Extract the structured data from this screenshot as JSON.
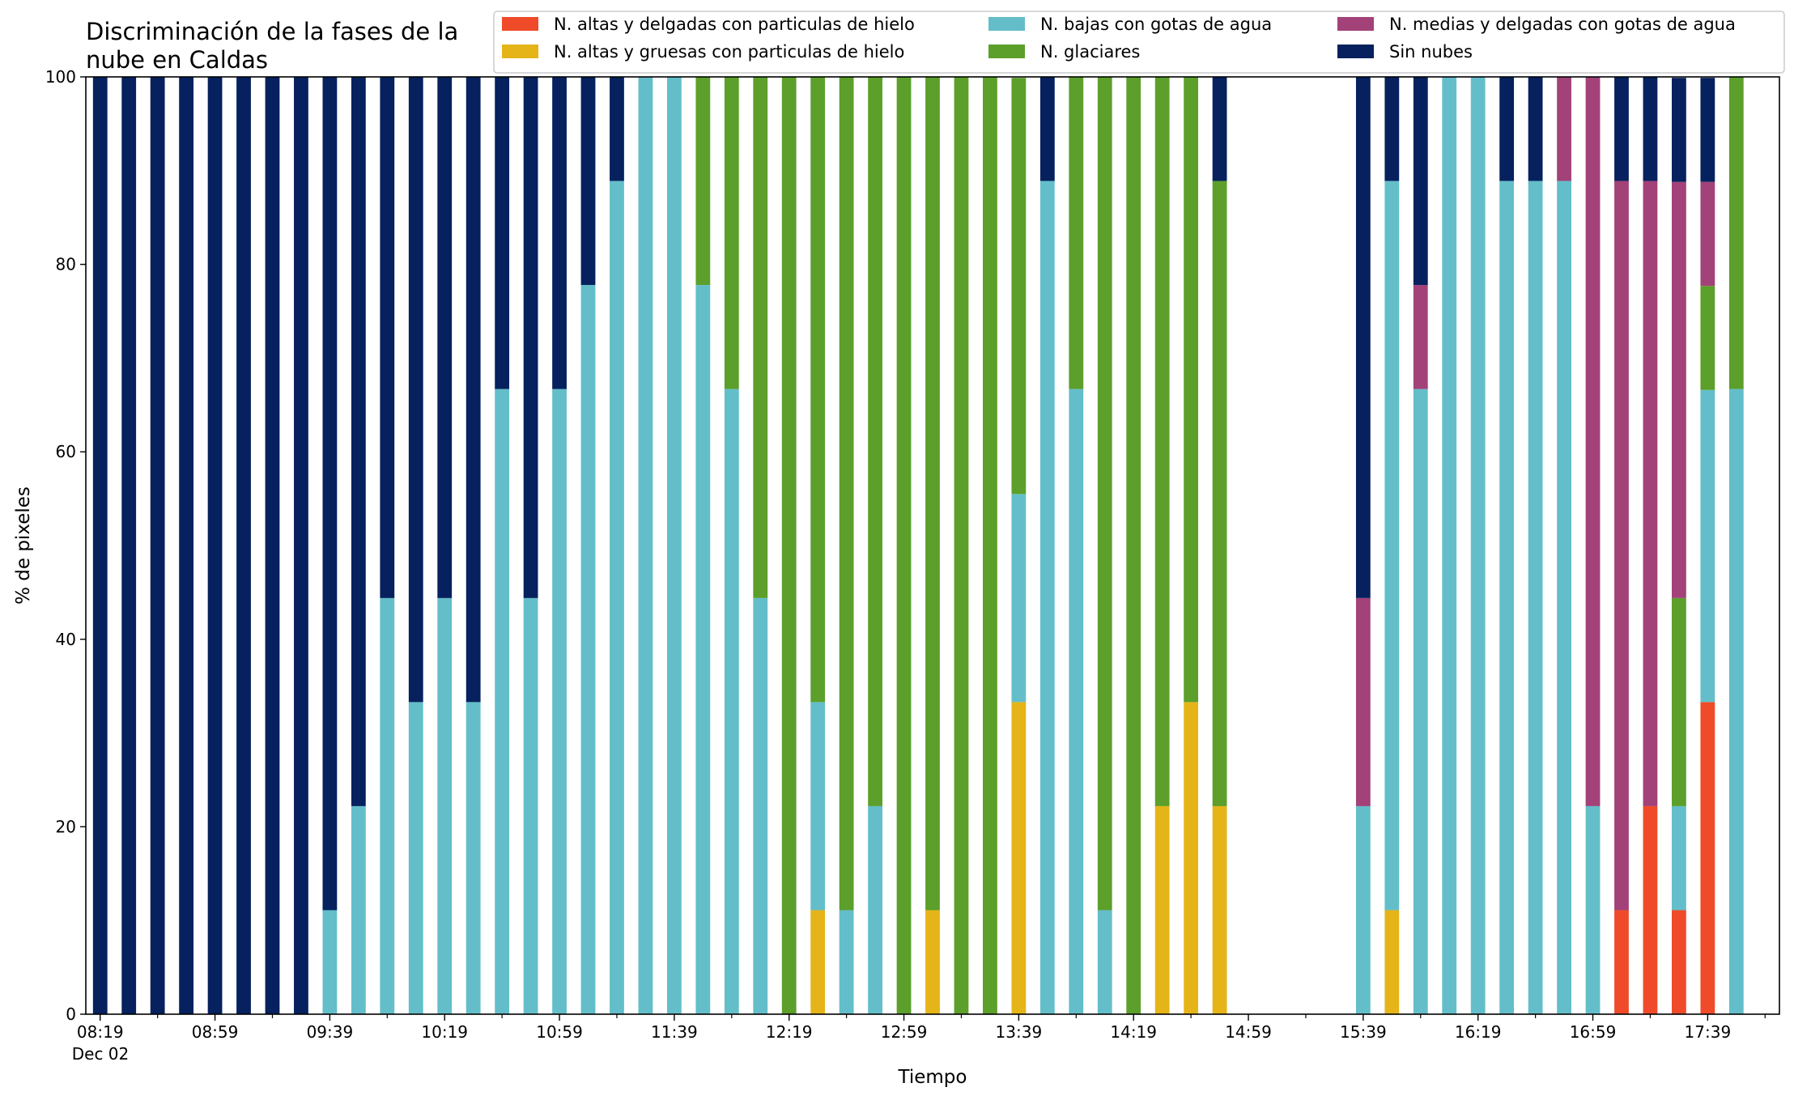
{
  "chart_data": {
    "type": "bar",
    "stacked": true,
    "title": "Discriminación de la fases de la nube en Caldas",
    "title_lines": [
      "Discriminación de la fases de la",
      "nube en Caldas"
    ],
    "xlabel": "Tiempo",
    "ylabel": "% de pixeles",
    "ylim": [
      0,
      100
    ],
    "yticks": [
      0,
      20,
      40,
      60,
      80,
      100
    ],
    "xlim": [
      "08:14",
      "18:04"
    ],
    "x_tick_labels": [
      "08:19",
      "08:59",
      "09:39",
      "10:19",
      "10:59",
      "11:39",
      "12:19",
      "12:59",
      "13:39",
      "14:19",
      "14:59",
      "15:39",
      "16:19",
      "16:59",
      "17:39"
    ],
    "x_tick_date_label": "Dec 02",
    "grid": false,
    "legend_position": "top-right",
    "categories": [
      "08:19",
      "08:29",
      "08:39",
      "08:49",
      "08:59",
      "09:09",
      "09:19",
      "09:29",
      "09:39",
      "09:49",
      "09:59",
      "10:09",
      "10:19",
      "10:29",
      "10:39",
      "10:49",
      "10:59",
      "11:09",
      "11:19",
      "11:29",
      "11:39",
      "11:49",
      "11:59",
      "12:09",
      "12:19",
      "12:29",
      "12:39",
      "12:49",
      "12:59",
      "13:09",
      "13:19",
      "13:29",
      "13:39",
      "13:49",
      "13:59",
      "14:09",
      "14:19",
      "14:29",
      "14:39",
      "14:49",
      "14:59",
      "15:09",
      "15:19",
      "15:29",
      "15:39",
      "15:49",
      "15:59",
      "16:09",
      "16:19",
      "16:29",
      "16:39",
      "16:49",
      "16:59",
      "17:09",
      "17:19",
      "17:29",
      "17:39",
      "17:49"
    ],
    "series": [
      {
        "name": "N. altas y delgadas con particulas de hielo",
        "color": "#ef4b2a",
        "values": [
          0,
          0,
          0,
          0,
          0,
          0,
          0,
          0,
          0,
          0,
          0,
          0,
          0,
          0,
          0,
          0,
          0,
          0,
          0,
          0,
          0,
          0,
          0,
          0,
          0,
          0,
          0,
          0,
          0,
          0,
          0,
          0,
          0,
          0,
          0,
          0,
          0,
          0,
          0,
          0,
          0,
          0,
          0,
          0,
          0,
          0,
          0,
          0,
          0,
          0,
          0,
          0,
          0,
          11.1,
          22.2,
          11.1,
          33.3,
          0
        ]
      },
      {
        "name": "N. altas y gruesas con particulas de hielo",
        "color": "#e5b419",
        "values": [
          0,
          0,
          0,
          0,
          0,
          0,
          0,
          0,
          0,
          0,
          0,
          0,
          0,
          0,
          0,
          0,
          0,
          0,
          0,
          0,
          0,
          0,
          0,
          0,
          0,
          11.1,
          0,
          0,
          0,
          11.1,
          0,
          0,
          33.3,
          0,
          0,
          0,
          0,
          22.2,
          33.3,
          22.2,
          0,
          0,
          0,
          0,
          0,
          11.1,
          0,
          0,
          0,
          0,
          0,
          0,
          0,
          0,
          0,
          0,
          0,
          0
        ]
      },
      {
        "name": "N. bajas con gotas de agua",
        "color": "#63bec9",
        "values": [
          0,
          0,
          0,
          0,
          0,
          0,
          0,
          0,
          11.1,
          22.2,
          44.4,
          33.3,
          44.4,
          33.3,
          66.7,
          44.4,
          66.7,
          77.8,
          88.9,
          100,
          100,
          77.8,
          66.7,
          44.4,
          0,
          22.2,
          11.1,
          22.2,
          0,
          0,
          0,
          0,
          22.2,
          88.9,
          66.7,
          11.1,
          0,
          0,
          0,
          0,
          0,
          0,
          0,
          0,
          22.2,
          77.8,
          66.7,
          100,
          100,
          88.9,
          88.9,
          88.9,
          22.2,
          0,
          0,
          11.1,
          33.3,
          66.7
        ]
      },
      {
        "name": "N. glaciares",
        "color": "#5c9f2b",
        "values": [
          0,
          0,
          0,
          0,
          0,
          0,
          0,
          0,
          0,
          0,
          0,
          0,
          0,
          0,
          0,
          0,
          0,
          0,
          0,
          0,
          0,
          22.2,
          33.3,
          55.6,
          100,
          66.7,
          88.9,
          77.8,
          100,
          88.9,
          100,
          100,
          44.4,
          0,
          33.3,
          88.9,
          100,
          77.8,
          66.7,
          66.7,
          0,
          0,
          0,
          0,
          0,
          0,
          0,
          0,
          0,
          0,
          0,
          0,
          0,
          0,
          0,
          22.2,
          11.1,
          33.3
        ]
      },
      {
        "name": "N. medias y delgadas con gotas de agua",
        "color": "#a24278",
        "values": [
          0,
          0,
          0,
          0,
          0,
          0,
          0,
          0,
          0,
          0,
          0,
          0,
          0,
          0,
          0,
          0,
          0,
          0,
          0,
          0,
          0,
          0,
          0,
          0,
          0,
          0,
          0,
          0,
          0,
          0,
          0,
          0,
          0,
          0,
          0,
          0,
          0,
          0,
          0,
          0,
          0,
          0,
          0,
          0,
          22.2,
          0,
          11.1,
          0,
          0,
          0,
          0,
          11.1,
          77.8,
          77.8,
          66.7,
          44.4,
          11.1,
          0
        ]
      },
      {
        "name": "Sin nubes",
        "color": "#06215e",
        "values": [
          100,
          100,
          100,
          100,
          100,
          100,
          100,
          100,
          88.9,
          77.8,
          55.6,
          66.7,
          55.6,
          66.7,
          33.3,
          55.6,
          33.3,
          22.2,
          11.1,
          0,
          0,
          0,
          0,
          0,
          0,
          0,
          0,
          0,
          0,
          0,
          0,
          0,
          0,
          11.1,
          0,
          0,
          0,
          0,
          0,
          11.1,
          0,
          0,
          0,
          0,
          55.6,
          11.1,
          22.2,
          0,
          0,
          11.1,
          11.1,
          0,
          0,
          11.1,
          11.1,
          11.1,
          11.1,
          0
        ]
      }
    ],
    "legend_order": [
      0,
      1,
      2,
      3,
      4,
      5
    ]
  }
}
